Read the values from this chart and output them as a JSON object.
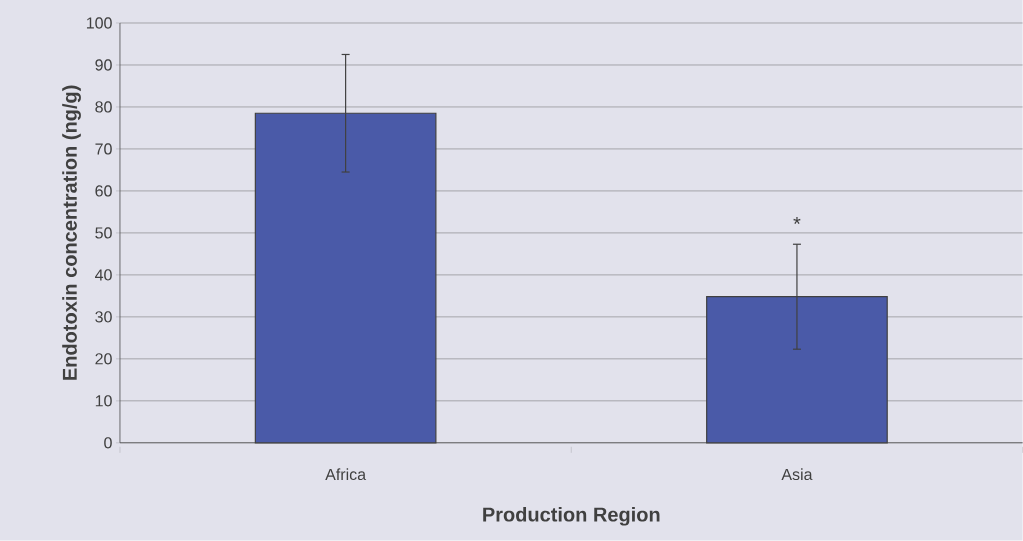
{
  "chart_data": {
    "type": "bar",
    "xlabel": "Production Region",
    "ylabel": "Endotoxin concentration (ng/g)",
    "categories": [
      "Africa",
      "Asia"
    ],
    "values": [
      78.5,
      34.8
    ],
    "errors": [
      14,
      12.5
    ],
    "color": "#4a5aa8",
    "ylim": [
      0,
      100
    ],
    "yticks": [
      0,
      10,
      20,
      30,
      40,
      50,
      60,
      70,
      80,
      90,
      100
    ],
    "grid": "y",
    "annotations": [
      "*"
    ]
  }
}
